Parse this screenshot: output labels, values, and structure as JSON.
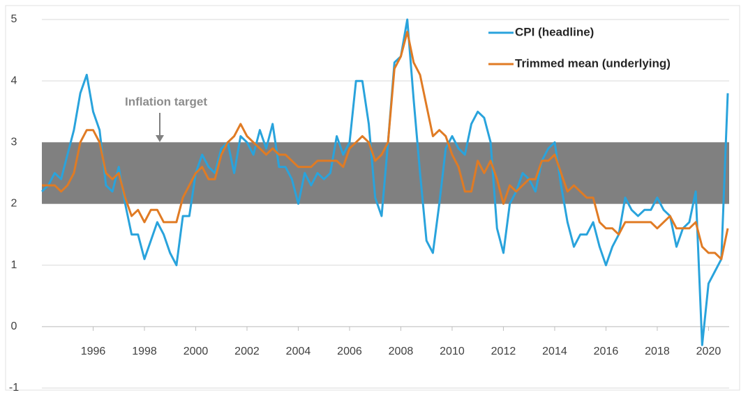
{
  "chart_data": {
    "type": "line",
    "x": [
      1994.5,
      1994.75,
      1995,
      1995.25,
      1995.5,
      1995.75,
      1996,
      1996.25,
      1996.5,
      1996.75,
      1997,
      1997.25,
      1997.5,
      1997.75,
      1998,
      1998.25,
      1998.5,
      1998.75,
      1999,
      1999.25,
      1999.5,
      1999.75,
      2000,
      2000.25,
      2000.5,
      2000.75,
      2001,
      2001.25,
      2001.5,
      2001.75,
      2002,
      2002.25,
      2002.5,
      2002.75,
      2003,
      2003.25,
      2003.5,
      2003.75,
      2004,
      2004.25,
      2004.5,
      2004.75,
      2005,
      2005.25,
      2005.5,
      2005.75,
      2006,
      2006.25,
      2006.5,
      2006.75,
      2007,
      2007.25,
      2007.5,
      2007.75,
      2008,
      2008.25,
      2008.5,
      2008.75,
      2009,
      2009.25,
      2009.5,
      2009.75,
      2010,
      2010.25,
      2010.5,
      2010.75,
      2011,
      2011.25,
      2011.5,
      2011.75,
      2012,
      2012.25,
      2012.5,
      2012.75,
      2013,
      2013.25,
      2013.5,
      2013.75,
      2014,
      2014.25,
      2014.5,
      2014.75,
      2015,
      2015.25,
      2015.5,
      2015.75,
      2016,
      2016.25,
      2016.5,
      2016.75,
      2017,
      2017.25,
      2017.5,
      2017.75,
      2018,
      2018.25,
      2018.5,
      2018.75,
      2019,
      2019.25,
      2019.5,
      2019.75,
      2020,
      2020.25,
      2020.5,
      2020.75,
      2021,
      2021.25
    ],
    "series": [
      {
        "name": "CPI (headline)",
        "color": "#29a3dc",
        "values": [
          2.2,
          2.3,
          2.5,
          2.4,
          2.8,
          3.2,
          3.8,
          4.1,
          3.5,
          3.2,
          2.3,
          2.2,
          2.6,
          2.0,
          1.5,
          1.5,
          1.1,
          1.4,
          1.7,
          1.5,
          1.2,
          1.0,
          1.8,
          1.8,
          2.5,
          2.8,
          2.6,
          2.5,
          2.9,
          3.0,
          2.5,
          3.1,
          3.0,
          2.8,
          3.2,
          2.9,
          3.3,
          2.6,
          2.6,
          2.4,
          2.0,
          2.5,
          2.3,
          2.5,
          2.4,
          2.5,
          3.1,
          2.8,
          3.0,
          4.0,
          4.0,
          3.3,
          2.1,
          1.8,
          3.0,
          4.3,
          4.4,
          5.0,
          3.7,
          2.5,
          1.4,
          1.2,
          2.0,
          2.9,
          3.1,
          2.9,
          2.8,
          3.3,
          3.5,
          3.4,
          3.0,
          1.6,
          1.2,
          2.0,
          2.2,
          2.5,
          2.4,
          2.2,
          2.7,
          2.9,
          3.0,
          2.3,
          1.7,
          1.3,
          1.5,
          1.5,
          1.7,
          1.3,
          1.0,
          1.3,
          1.5,
          2.1,
          1.9,
          1.8,
          1.9,
          1.9,
          2.1,
          1.9,
          1.8,
          1.3,
          1.6,
          1.7,
          2.2,
          -0.3,
          0.7,
          0.9,
          1.1,
          3.8
        ]
      },
      {
        "name": "Trimmed mean (underlying)",
        "color": "#e07b24",
        "values": [
          2.3,
          2.3,
          2.3,
          2.2,
          2.3,
          2.5,
          3.0,
          3.2,
          3.2,
          3.0,
          2.5,
          2.4,
          2.5,
          2.1,
          1.8,
          1.9,
          1.7,
          1.9,
          1.9,
          1.7,
          1.7,
          1.7,
          2.1,
          2.3,
          2.5,
          2.6,
          2.4,
          2.4,
          2.8,
          3.0,
          3.1,
          3.3,
          3.1,
          3.0,
          2.9,
          2.8,
          2.9,
          2.8,
          2.8,
          2.7,
          2.6,
          2.6,
          2.6,
          2.7,
          2.7,
          2.7,
          2.7,
          2.6,
          2.9,
          3.0,
          3.1,
          3.0,
          2.7,
          2.8,
          3.0,
          4.2,
          4.4,
          4.8,
          4.3,
          4.1,
          3.6,
          3.1,
          3.2,
          3.1,
          2.8,
          2.6,
          2.2,
          2.2,
          2.7,
          2.5,
          2.7,
          2.4,
          2.0,
          2.3,
          2.2,
          2.3,
          2.4,
          2.4,
          2.7,
          2.7,
          2.8,
          2.5,
          2.2,
          2.3,
          2.2,
          2.1,
          2.1,
          1.7,
          1.6,
          1.6,
          1.5,
          1.7,
          1.7,
          1.7,
          1.7,
          1.7,
          1.6,
          1.7,
          1.8,
          1.6,
          1.6,
          1.6,
          1.7,
          1.3,
          1.2,
          1.2,
          1.1,
          1.6
        ]
      }
    ],
    "band": {
      "range": [
        2,
        3
      ],
      "color": "#808080",
      "label": "Inflation target"
    },
    "xlim": [
      1994.5,
      2021.25
    ],
    "xticks": [
      {
        "value": 1996.5,
        "label": "1996"
      },
      {
        "value": 1998.5,
        "label": "1998"
      },
      {
        "value": 2000.5,
        "label": "2000"
      },
      {
        "value": 2002.5,
        "label": "2002"
      },
      {
        "value": 2004.5,
        "label": "2004"
      },
      {
        "value": 2006.5,
        "label": "2006"
      },
      {
        "value": 2008.5,
        "label": "2008"
      },
      {
        "value": 2010.5,
        "label": "2010"
      },
      {
        "value": 2012.5,
        "label": "2012"
      },
      {
        "value": 2014.5,
        "label": "2014"
      },
      {
        "value": 2016.5,
        "label": "2016"
      },
      {
        "value": 2018.5,
        "label": "2018"
      },
      {
        "value": 2020.5,
        "label": "2020"
      }
    ],
    "ylim": [
      -1,
      5
    ],
    "yticks": [
      -1,
      0,
      1,
      2,
      3,
      4,
      5
    ],
    "grid": true,
    "legend": "top-right"
  }
}
